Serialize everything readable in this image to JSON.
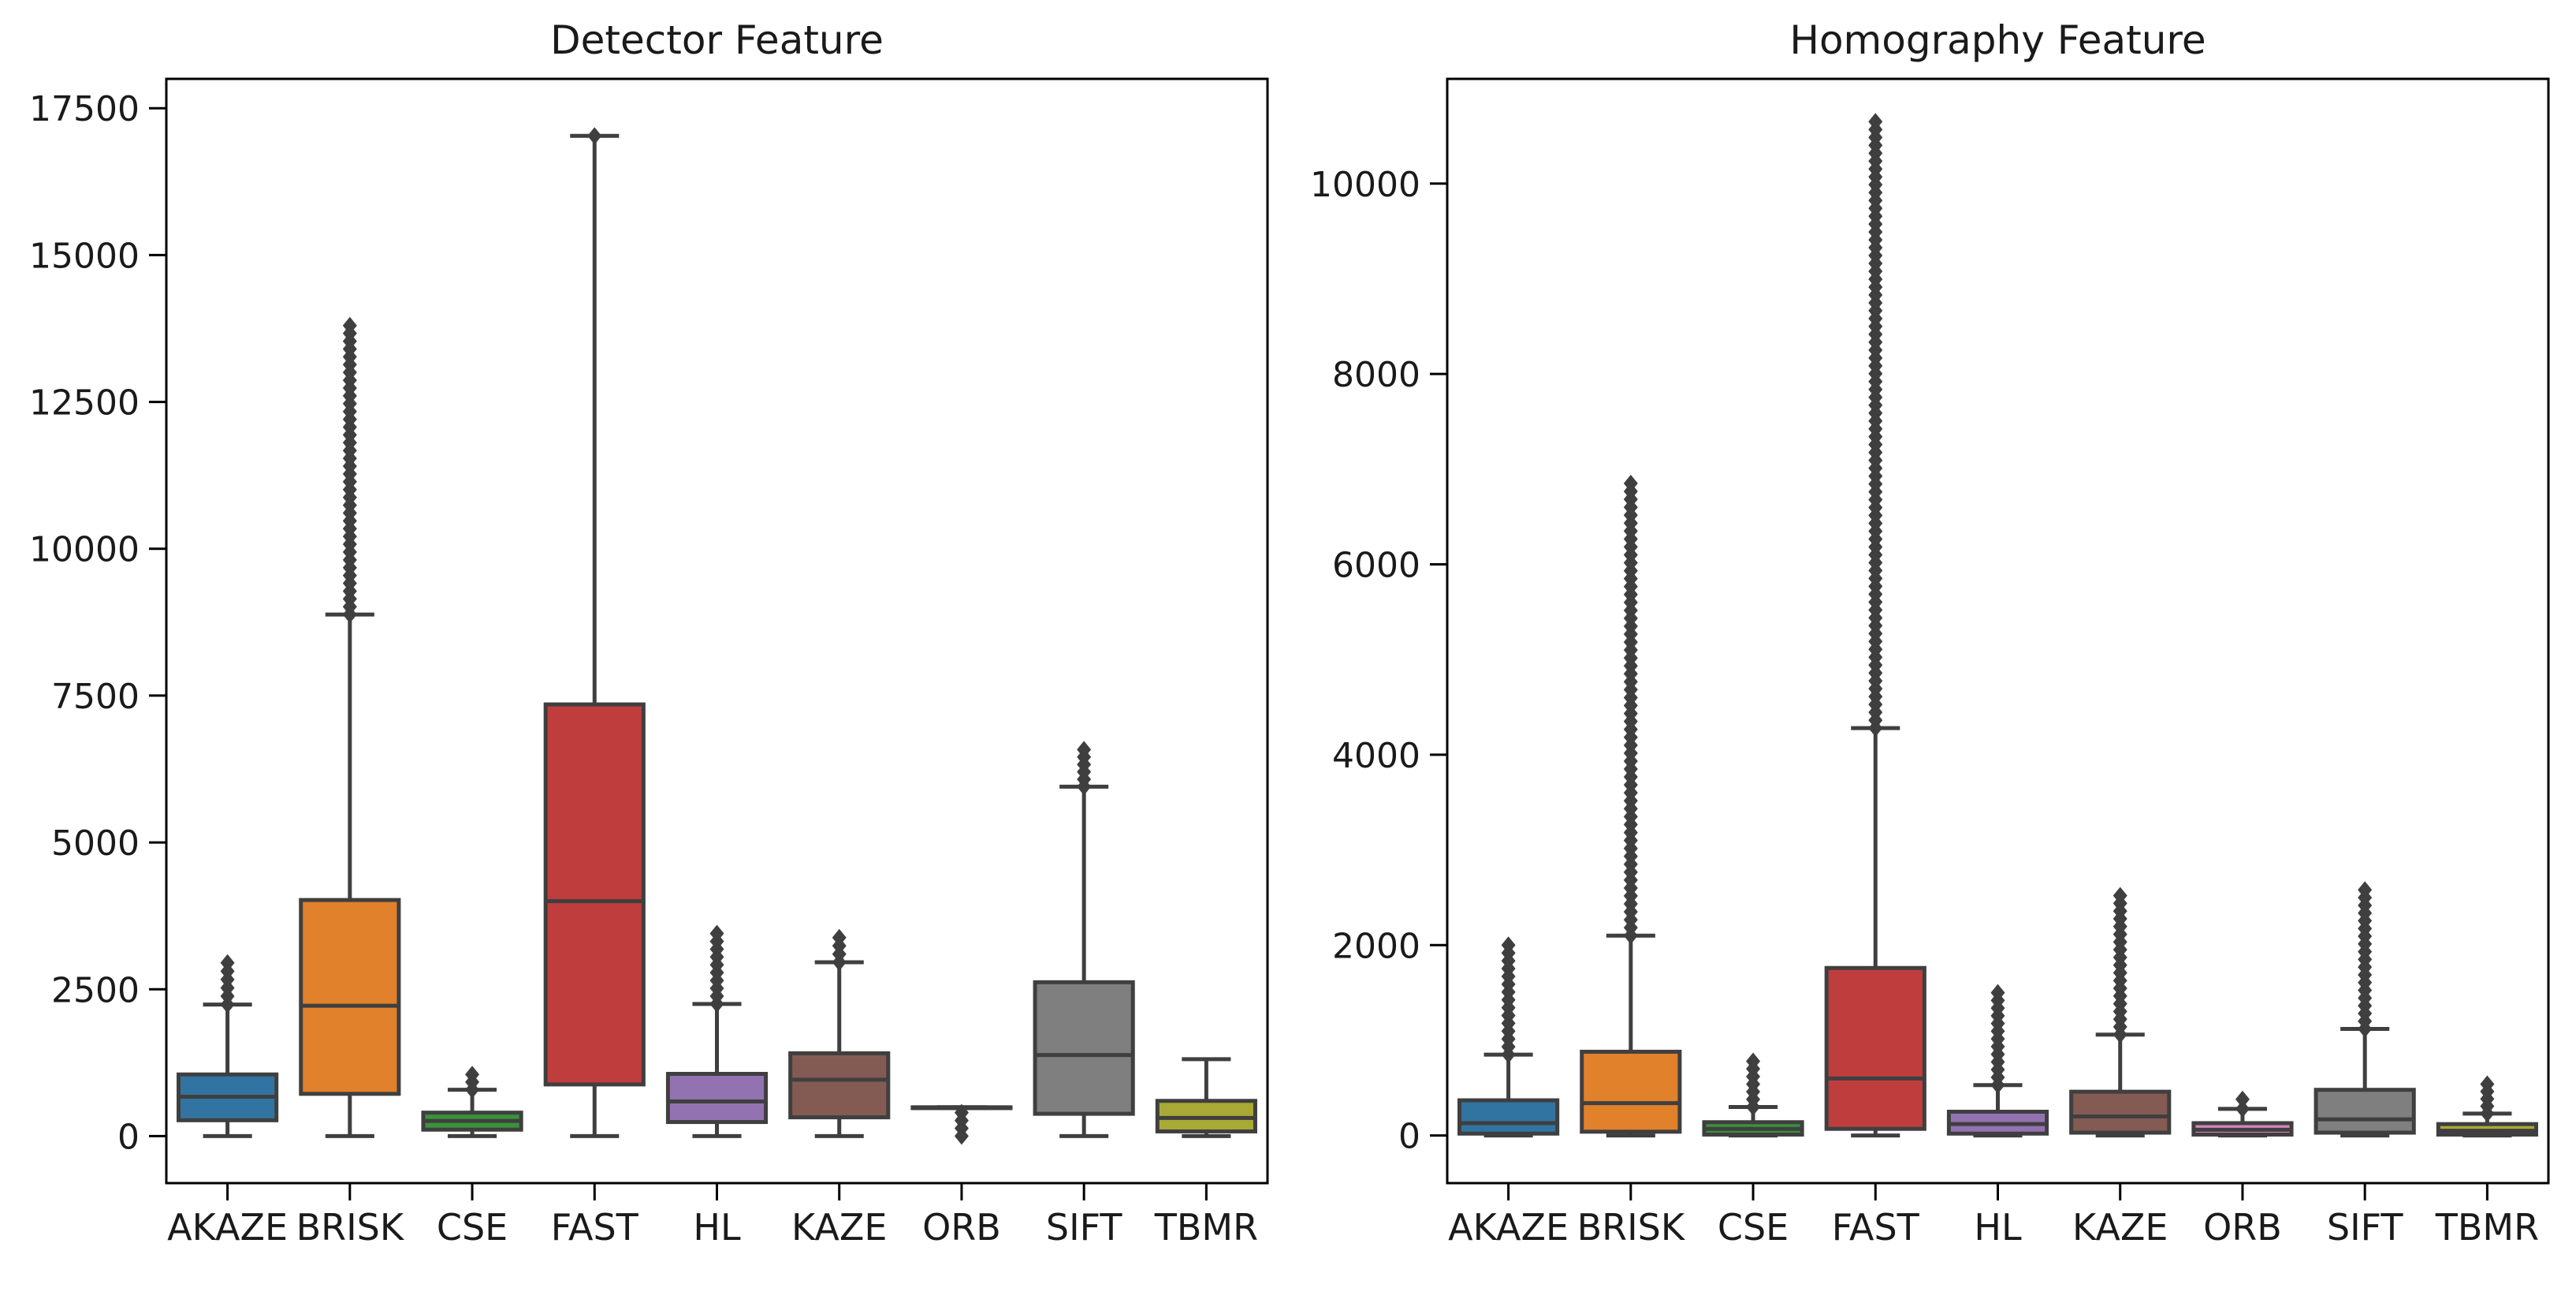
{
  "chart_data": [
    {
      "type": "box",
      "title": "Detector Feature",
      "xlabel": "",
      "ylabel": "",
      "ylim": [
        -800,
        18000
      ],
      "yticks": [
        0,
        2500,
        5000,
        7500,
        10000,
        12500,
        15000,
        17500
      ],
      "grid": false,
      "categories": [
        "AKAZE",
        "BRISK",
        "CSE",
        "FAST",
        "HL",
        "KAZE",
        "ORB",
        "SIFT",
        "TBMR"
      ],
      "colors": [
        "#3274a1",
        "#e1812c",
        "#3a923a",
        "#c03d3e",
        "#9372b2",
        "#845b53",
        "#d684bd",
        "#7f7f7f",
        "#a9aa35"
      ],
      "boxes": [
        {
          "min": 0,
          "q1": 270,
          "median": 670,
          "q3": 1050,
          "max": 2240,
          "outliers_from": 2240,
          "outliers_to": 2950
        },
        {
          "min": 0,
          "q1": 720,
          "median": 2220,
          "q3": 4020,
          "max": 8880,
          "outliers_from": 8880,
          "outliers_to": 13800
        },
        {
          "min": 0,
          "q1": 110,
          "median": 260,
          "q3": 400,
          "max": 790,
          "outliers_from": 790,
          "outliers_to": 1050
        },
        {
          "min": 0,
          "q1": 880,
          "median": 4000,
          "q3": 7350,
          "max": 17030,
          "outliers_from": 17030,
          "outliers_to": 17030
        },
        {
          "min": 0,
          "q1": 240,
          "median": 590,
          "q3": 1060,
          "max": 2250,
          "outliers_from": 2250,
          "outliers_to": 3450
        },
        {
          "min": 0,
          "q1": 320,
          "median": 960,
          "q3": 1410,
          "max": 2960,
          "outliers_from": 2960,
          "outliers_to": 3380
        },
        {
          "min": 490,
          "q1": 490,
          "median": 490,
          "q3": 490,
          "max": 490,
          "outliers_from": 0,
          "outliers_to": 400
        },
        {
          "min": 0,
          "q1": 380,
          "median": 1380,
          "q3": 2620,
          "max": 5950,
          "outliers_from": 5950,
          "outliers_to": 6580
        },
        {
          "min": 0,
          "q1": 80,
          "median": 310,
          "q3": 600,
          "max": 1310,
          "outliers_from": null,
          "outliers_to": null
        }
      ]
    },
    {
      "type": "box",
      "title": "Homography Feature",
      "xlabel": "",
      "ylabel": "",
      "ylim": [
        -500,
        11100
      ],
      "yticks": [
        0,
        2000,
        4000,
        6000,
        8000,
        10000
      ],
      "grid": false,
      "categories": [
        "AKAZE",
        "BRISK",
        "CSE",
        "FAST",
        "HL",
        "KAZE",
        "ORB",
        "SIFT",
        "TBMR"
      ],
      "colors": [
        "#3274a1",
        "#e1812c",
        "#3a923a",
        "#c03d3e",
        "#9372b2",
        "#845b53",
        "#d684bd",
        "#7f7f7f",
        "#a9aa35"
      ],
      "boxes": [
        {
          "min": 0,
          "q1": 20,
          "median": 130,
          "q3": 370,
          "max": 850,
          "outliers_from": 850,
          "outliers_to": 2000
        },
        {
          "min": 0,
          "q1": 40,
          "median": 340,
          "q3": 880,
          "max": 2100,
          "outliers_from": 2100,
          "outliers_to": 6850
        },
        {
          "min": 0,
          "q1": 10,
          "median": 70,
          "q3": 140,
          "max": 300,
          "outliers_from": 300,
          "outliers_to": 780
        },
        {
          "min": 0,
          "q1": 70,
          "median": 600,
          "q3": 1760,
          "max": 4280,
          "outliers_from": 4280,
          "outliers_to": 10650
        },
        {
          "min": 0,
          "q1": 20,
          "median": 120,
          "q3": 250,
          "max": 530,
          "outliers_from": 530,
          "outliers_to": 1500
        },
        {
          "min": 0,
          "q1": 30,
          "median": 200,
          "q3": 460,
          "max": 1060,
          "outliers_from": 1060,
          "outliers_to": 2520
        },
        {
          "min": 0,
          "q1": 10,
          "median": 60,
          "q3": 130,
          "max": 280,
          "outliers_from": 280,
          "outliers_to": 380
        },
        {
          "min": 0,
          "q1": 30,
          "median": 170,
          "q3": 480,
          "max": 1120,
          "outliers_from": 1120,
          "outliers_to": 2580
        },
        {
          "min": 0,
          "q1": 10,
          "median": 50,
          "q3": 120,
          "max": 230,
          "outliers_from": 230,
          "outliers_to": 540
        }
      ]
    }
  ]
}
